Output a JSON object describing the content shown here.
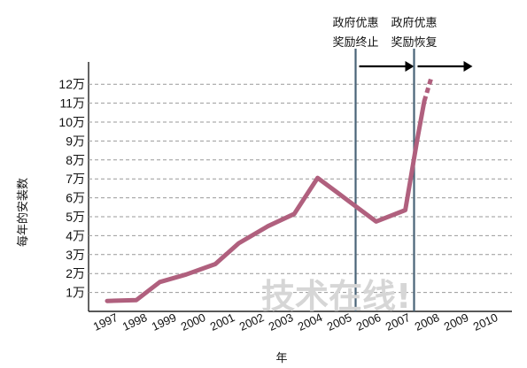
{
  "chart_data": {
    "type": "line",
    "title": "",
    "xlabel": "年",
    "ylabel": "每年的安装数",
    "x": [
      "1997",
      "1998",
      "1999",
      "2000",
      "2001",
      "2002",
      "2003",
      "2004",
      "2005",
      "2006",
      "2007",
      "2008",
      "2009",
      "2010"
    ],
    "y_ticks": [
      "1万",
      "2万",
      "3万",
      "4万",
      "5万",
      "6万",
      "7万",
      "8万",
      "9万",
      "10万",
      "11万",
      "12万"
    ],
    "ylim": [
      0,
      12.5
    ],
    "grid": true,
    "series": [
      {
        "color": "#b0607e",
        "points": [
          {
            "x": 1997.0,
            "y": 0.55
          },
          {
            "x": 1998.0,
            "y": 0.6
          },
          {
            "x": 1998.8,
            "y": 1.55
          },
          {
            "x": 1999.7,
            "y": 1.95
          },
          {
            "x": 2000.7,
            "y": 2.5
          },
          {
            "x": 2001.5,
            "y": 3.6
          },
          {
            "x": 2002.5,
            "y": 4.5
          },
          {
            "x": 2003.4,
            "y": 5.15
          },
          {
            "x": 2004.2,
            "y": 7.05
          },
          {
            "x": 2005.2,
            "y": 5.9
          },
          {
            "x": 2006.2,
            "y": 4.75
          },
          {
            "x": 2007.2,
            "y": 5.35
          },
          {
            "x": 2007.6,
            "y": 9.0
          },
          {
            "x": 2007.85,
            "y": 11.1
          }
        ],
        "projected": [
          {
            "x": 2007.85,
            "y": 11.1
          },
          {
            "x": 2008.1,
            "y": 12.4
          }
        ]
      }
    ],
    "annotations": [
      {
        "line1": "政府优惠",
        "line2": "奖励终止",
        "x": 2005.5
      },
      {
        "line1": "政府优惠",
        "line2": "奖励恢复",
        "x": 2007.5
      }
    ],
    "watermark": "技术在线!"
  },
  "colors": {
    "series": "#b0607e",
    "vline": "#4a6478",
    "grid": "#999999"
  }
}
